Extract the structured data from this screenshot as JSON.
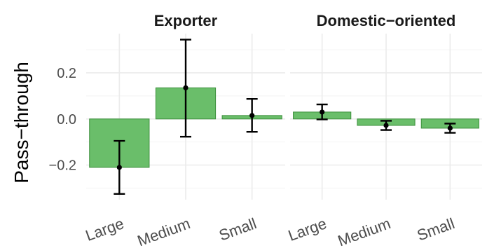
{
  "chart_data": {
    "type": "bar",
    "ylabel": "Pass−through",
    "xlabel": "",
    "ylim": [
      -0.35,
      0.37
    ],
    "yticks": [
      -0.2,
      0.0,
      0.2
    ],
    "ytick_labels": [
      "−0.2",
      "0.0",
      "0.2"
    ],
    "grid": true,
    "bar_color": "#6abe6a",
    "categories": [
      "Large",
      "Medium",
      "Small"
    ],
    "panels": [
      {
        "title": "Exporter",
        "values": [
          -0.21,
          0.135,
          0.015
        ],
        "error_low": [
          -0.325,
          -0.077,
          -0.056
        ],
        "error_high": [
          -0.095,
          0.344,
          0.087
        ]
      },
      {
        "title": "Domestic−oriented",
        "values": [
          0.03,
          -0.028,
          -0.04
        ],
        "error_low": [
          -0.002,
          -0.048,
          -0.06
        ],
        "error_high": [
          0.063,
          -0.008,
          -0.02
        ]
      }
    ]
  }
}
